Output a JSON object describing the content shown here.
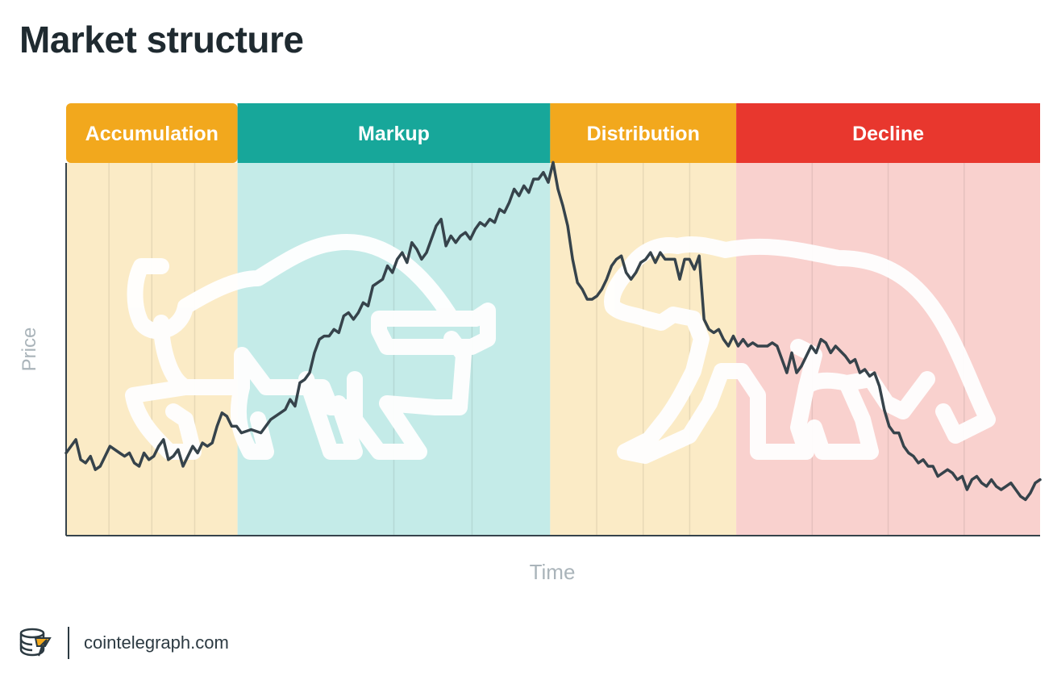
{
  "title": "Market structure",
  "footer": {
    "brand": "cointelegraph.com",
    "logo_icon": "cointelegraph-logo-icon"
  },
  "chart_data": {
    "type": "line",
    "xlabel": "Time",
    "ylabel": "Price",
    "grid": "vertical",
    "line_color": "#36434b",
    "phases": [
      {
        "label": "Accumulation",
        "header_color": "#f2a81d",
        "bg_color": "#fbebc6",
        "start": 0,
        "end": 0.176
      },
      {
        "label": "Markup",
        "header_color": "#17a79a",
        "bg_color": "#c4ebe8",
        "start": 0.176,
        "end": 0.497
      },
      {
        "label": "Distribution",
        "header_color": "#f2a81d",
        "bg_color": "#fbebc6",
        "start": 0.497,
        "end": 0.688
      },
      {
        "label": "Decline",
        "header_color": "#e8372e",
        "bg_color": "#f9d1ce",
        "start": 0.688,
        "end": 1.0
      }
    ],
    "illustrations": [
      "bull-outline",
      "bear-outline"
    ],
    "series": [
      {
        "values": [
          [
            0,
            0.82
          ],
          [
            0.01,
            0.78
          ],
          [
            0.015,
            0.84
          ],
          [
            0.02,
            0.85
          ],
          [
            0.025,
            0.83
          ],
          [
            0.03,
            0.87
          ],
          [
            0.035,
            0.86
          ],
          [
            0.045,
            0.8
          ],
          [
            0.055,
            0.82
          ],
          [
            0.06,
            0.83
          ],
          [
            0.065,
            0.82
          ],
          [
            0.07,
            0.85
          ],
          [
            0.075,
            0.86
          ],
          [
            0.08,
            0.82
          ],
          [
            0.085,
            0.84
          ],
          [
            0.09,
            0.83
          ],
          [
            0.095,
            0.8
          ],
          [
            0.1,
            0.78
          ],
          [
            0.105,
            0.84
          ],
          [
            0.11,
            0.83
          ],
          [
            0.115,
            0.81
          ],
          [
            0.12,
            0.86
          ],
          [
            0.125,
            0.83
          ],
          [
            0.13,
            0.8
          ],
          [
            0.135,
            0.82
          ],
          [
            0.14,
            0.79
          ],
          [
            0.145,
            0.8
          ],
          [
            0.15,
            0.79
          ],
          [
            0.155,
            0.74
          ],
          [
            0.16,
            0.7
          ],
          [
            0.165,
            0.71
          ],
          [
            0.17,
            0.74
          ],
          [
            0.175,
            0.74
          ],
          [
            0.18,
            0.76
          ],
          [
            0.19,
            0.75
          ],
          [
            0.2,
            0.76
          ],
          [
            0.21,
            0.72
          ],
          [
            0.22,
            0.7
          ],
          [
            0.225,
            0.69
          ],
          [
            0.23,
            0.66
          ],
          [
            0.235,
            0.68
          ],
          [
            0.24,
            0.61
          ],
          [
            0.245,
            0.6
          ],
          [
            0.25,
            0.58
          ],
          [
            0.255,
            0.52
          ],
          [
            0.26,
            0.48
          ],
          [
            0.265,
            0.47
          ],
          [
            0.27,
            0.47
          ],
          [
            0.275,
            0.45
          ],
          [
            0.28,
            0.46
          ],
          [
            0.285,
            0.41
          ],
          [
            0.29,
            0.4
          ],
          [
            0.295,
            0.42
          ],
          [
            0.3,
            0.4
          ],
          [
            0.305,
            0.37
          ],
          [
            0.31,
            0.38
          ],
          [
            0.315,
            0.32
          ],
          [
            0.32,
            0.31
          ],
          [
            0.325,
            0.3
          ],
          [
            0.33,
            0.26
          ],
          [
            0.335,
            0.28
          ],
          [
            0.34,
            0.24
          ],
          [
            0.345,
            0.22
          ],
          [
            0.35,
            0.25
          ],
          [
            0.355,
            0.19
          ],
          [
            0.36,
            0.21
          ],
          [
            0.365,
            0.24
          ],
          [
            0.37,
            0.22
          ],
          [
            0.375,
            0.18
          ],
          [
            0.38,
            0.14
          ],
          [
            0.385,
            0.12
          ],
          [
            0.39,
            0.2
          ],
          [
            0.395,
            0.17
          ],
          [
            0.4,
            0.19
          ],
          [
            0.405,
            0.17
          ],
          [
            0.41,
            0.16
          ],
          [
            0.415,
            0.18
          ],
          [
            0.42,
            0.15
          ],
          [
            0.425,
            0.13
          ],
          [
            0.43,
            0.14
          ],
          [
            0.435,
            0.12
          ],
          [
            0.44,
            0.13
          ],
          [
            0.445,
            0.09
          ],
          [
            0.45,
            0.1
          ],
          [
            0.455,
            0.07
          ],
          [
            0.46,
            0.03
          ],
          [
            0.465,
            0.05
          ],
          [
            0.47,
            0.02
          ],
          [
            0.475,
            0.04
          ],
          [
            0.48,
            0.0
          ],
          [
            0.485,
            0.0
          ],
          [
            0.49,
            -0.02
          ],
          [
            0.495,
            0.01
          ],
          [
            0.5,
            -0.05
          ],
          [
            0.505,
            0.03
          ],
          [
            0.51,
            0.08
          ],
          [
            0.515,
            0.14
          ],
          [
            0.52,
            0.24
          ],
          [
            0.525,
            0.31
          ],
          [
            0.53,
            0.33
          ],
          [
            0.535,
            0.36
          ],
          [
            0.54,
            0.36
          ],
          [
            0.545,
            0.35
          ],
          [
            0.55,
            0.33
          ],
          [
            0.555,
            0.3
          ],
          [
            0.56,
            0.26
          ],
          [
            0.565,
            0.24
          ],
          [
            0.57,
            0.23
          ],
          [
            0.575,
            0.28
          ],
          [
            0.58,
            0.3
          ],
          [
            0.585,
            0.28
          ],
          [
            0.59,
            0.25
          ],
          [
            0.595,
            0.24
          ],
          [
            0.6,
            0.22
          ],
          [
            0.605,
            0.25
          ],
          [
            0.61,
            0.22
          ],
          [
            0.615,
            0.24
          ],
          [
            0.62,
            0.24
          ],
          [
            0.625,
            0.24
          ],
          [
            0.63,
            0.3
          ],
          [
            0.635,
            0.24
          ],
          [
            0.64,
            0.24
          ],
          [
            0.645,
            0.27
          ],
          [
            0.65,
            0.23
          ],
          [
            0.655,
            0.42
          ],
          [
            0.66,
            0.45
          ],
          [
            0.665,
            0.46
          ],
          [
            0.67,
            0.45
          ],
          [
            0.675,
            0.48
          ],
          [
            0.68,
            0.5
          ],
          [
            0.685,
            0.47
          ],
          [
            0.69,
            0.5
          ],
          [
            0.695,
            0.48
          ],
          [
            0.7,
            0.5
          ],
          [
            0.705,
            0.49
          ],
          [
            0.71,
            0.5
          ],
          [
            0.72,
            0.5
          ],
          [
            0.725,
            0.49
          ],
          [
            0.73,
            0.5
          ],
          [
            0.735,
            0.54
          ],
          [
            0.74,
            0.58
          ],
          [
            0.745,
            0.52
          ],
          [
            0.75,
            0.58
          ],
          [
            0.755,
            0.56
          ],
          [
            0.76,
            0.53
          ],
          [
            0.765,
            0.5
          ],
          [
            0.77,
            0.52
          ],
          [
            0.775,
            0.48
          ],
          [
            0.78,
            0.49
          ],
          [
            0.785,
            0.52
          ],
          [
            0.79,
            0.5
          ],
          [
            0.8,
            0.53
          ],
          [
            0.805,
            0.55
          ],
          [
            0.81,
            0.54
          ],
          [
            0.815,
            0.58
          ],
          [
            0.82,
            0.57
          ],
          [
            0.825,
            0.59
          ],
          [
            0.83,
            0.58
          ],
          [
            0.835,
            0.62
          ],
          [
            0.84,
            0.69
          ],
          [
            0.845,
            0.74
          ],
          [
            0.85,
            0.76
          ],
          [
            0.855,
            0.76
          ],
          [
            0.86,
            0.8
          ],
          [
            0.865,
            0.82
          ],
          [
            0.87,
            0.83
          ],
          [
            0.875,
            0.85
          ],
          [
            0.88,
            0.84
          ],
          [
            0.885,
            0.86
          ],
          [
            0.89,
            0.86
          ],
          [
            0.895,
            0.89
          ],
          [
            0.9,
            0.88
          ],
          [
            0.905,
            0.87
          ],
          [
            0.91,
            0.88
          ],
          [
            0.915,
            0.9
          ],
          [
            0.92,
            0.89
          ],
          [
            0.925,
            0.93
          ],
          [
            0.93,
            0.9
          ],
          [
            0.935,
            0.89
          ],
          [
            0.94,
            0.91
          ],
          [
            0.945,
            0.92
          ],
          [
            0.95,
            0.9
          ],
          [
            0.955,
            0.92
          ],
          [
            0.96,
            0.93
          ],
          [
            0.965,
            0.92
          ],
          [
            0.97,
            0.91
          ],
          [
            0.975,
            0.93
          ],
          [
            0.98,
            0.95
          ],
          [
            0.985,
            0.96
          ],
          [
            0.99,
            0.94
          ],
          [
            0.995,
            0.91
          ],
          [
            1,
            0.9
          ]
        ]
      }
    ]
  }
}
